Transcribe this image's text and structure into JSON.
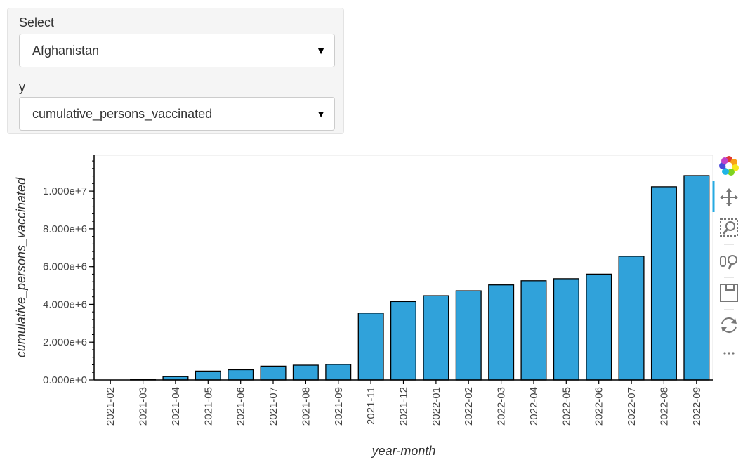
{
  "controls": {
    "select_label": "Select",
    "select_value": "Afghanistan",
    "y_label": "y",
    "y_value": "cumulative_persons_vaccinated"
  },
  "toolbar": {
    "items": [
      "bokeh-logo",
      "pan",
      "box-zoom",
      "wheel-zoom",
      "save",
      "reset",
      "more"
    ]
  },
  "colors": {
    "bar_fill": "#30a2da",
    "bar_stroke": "#000000",
    "axis": "#000000"
  },
  "chart_data": {
    "type": "bar",
    "title": "",
    "xlabel": "year-month",
    "ylabel": "cumulative_persons_vaccinated",
    "categories": [
      "2021-02",
      "2021-03",
      "2021-04",
      "2021-05",
      "2021-06",
      "2021-07",
      "2021-08",
      "2021-09",
      "2021-11",
      "2021-12",
      "2022-01",
      "2022-02",
      "2022-03",
      "2022-04",
      "2022-05",
      "2022-06",
      "2022-07",
      "2022-08",
      "2022-09"
    ],
    "values": [
      0,
      50000,
      180000,
      470000,
      540000,
      730000,
      780000,
      820000,
      3540000,
      4150000,
      4460000,
      4720000,
      5030000,
      5250000,
      5360000,
      5600000,
      6550000,
      10230000,
      10820000
    ],
    "ylim": [
      0,
      11900000
    ],
    "yticks": [
      0,
      2000000,
      4000000,
      6000000,
      8000000,
      10000000
    ],
    "ytick_labels": [
      "0.000e+0",
      "2.000e+6",
      "4.000e+6",
      "6.000e+6",
      "8.000e+6",
      "1.000e+7"
    ],
    "grid": false,
    "legend": "none"
  }
}
